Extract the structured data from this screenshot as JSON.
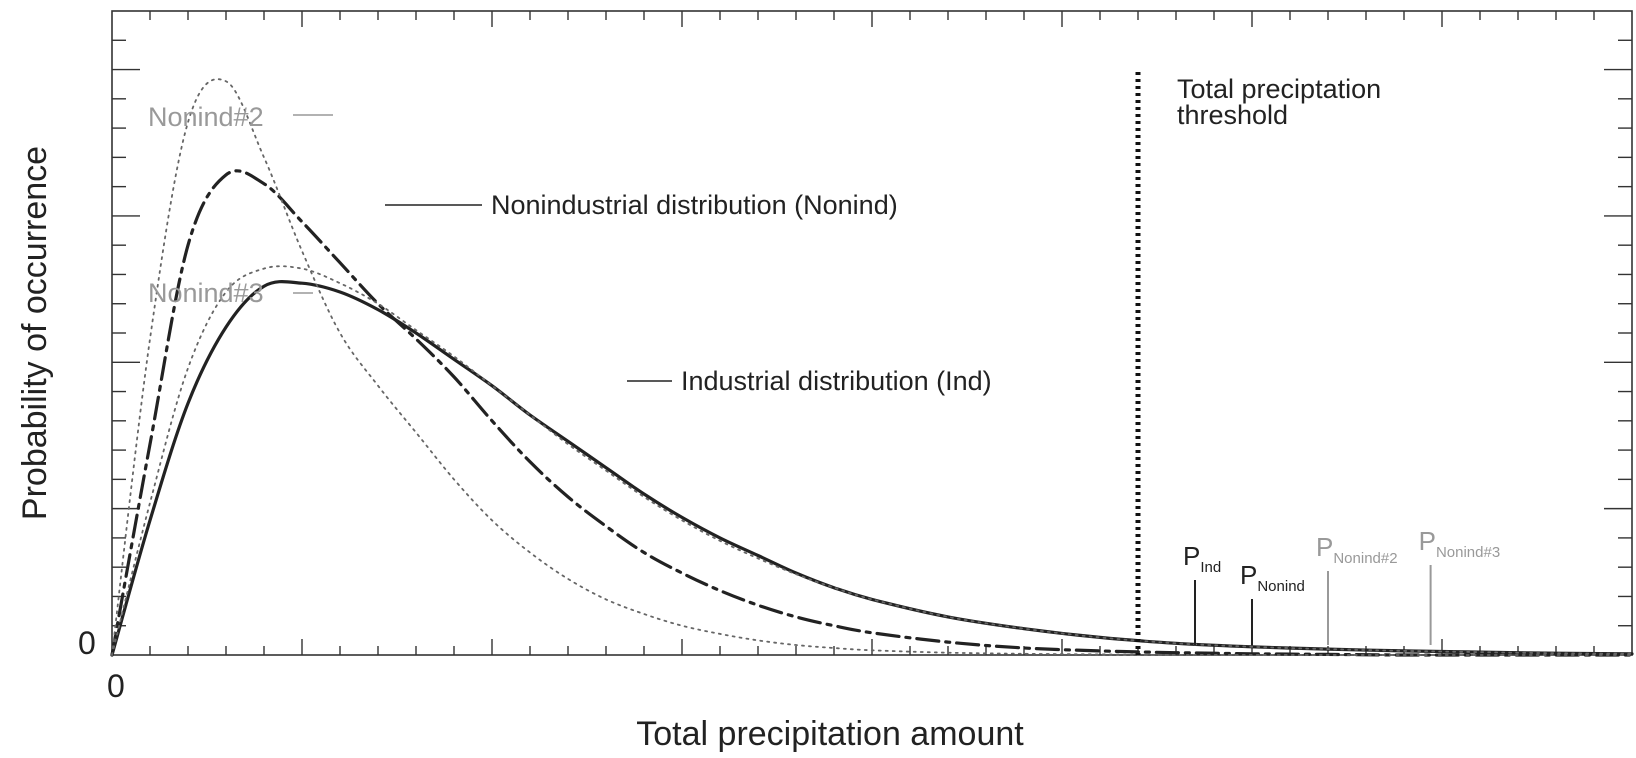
{
  "chart_data": {
    "type": "line",
    "title": "",
    "xlabel": "Total precipitation amount",
    "ylabel": "Probability of occurrence",
    "x_tick_label": "0",
    "y_tick_label": "0",
    "xlim": [
      0,
      40
    ],
    "ylim": [
      0,
      11
    ],
    "grid": false,
    "x": [
      0,
      1,
      2,
      3,
      4,
      5,
      6,
      7,
      8,
      9,
      10,
      11,
      12,
      13,
      14,
      15,
      16,
      17,
      18,
      19,
      20,
      22,
      24,
      26,
      28,
      30,
      32,
      34,
      36,
      38,
      40
    ],
    "series": [
      {
        "name": "Industrial distribution (Ind)",
        "style": "solid",
        "color": "#222222",
        "values": [
          0,
          2.3,
          4.3,
          5.6,
          6.3,
          6.35,
          6.2,
          5.9,
          5.5,
          5.05,
          4.6,
          4.1,
          3.65,
          3.2,
          2.75,
          2.35,
          2.0,
          1.7,
          1.4,
          1.15,
          0.95,
          0.65,
          0.45,
          0.3,
          0.2,
          0.14,
          0.1,
          0.07,
          0.05,
          0.03,
          0.02
        ]
      },
      {
        "name": "Nonindustrial distribution (Nonind)",
        "style": "dash-dot",
        "color": "#222222",
        "values": [
          0,
          3.6,
          7.0,
          8.2,
          8.05,
          7.4,
          6.7,
          6.0,
          5.4,
          4.75,
          4.0,
          3.3,
          2.7,
          2.2,
          1.75,
          1.4,
          1.1,
          0.85,
          0.65,
          0.5,
          0.38,
          0.22,
          0.12,
          0.07,
          0.04,
          0.02,
          0.01,
          0.0,
          0.0,
          0.0,
          0.0
        ]
      },
      {
        "name": "Nonind#2",
        "style": "dotted",
        "color": "#666666",
        "values": [
          0,
          5.4,
          9.1,
          9.8,
          8.5,
          6.9,
          5.5,
          4.6,
          3.8,
          3.0,
          2.3,
          1.75,
          1.3,
          0.95,
          0.7,
          0.5,
          0.36,
          0.25,
          0.17,
          0.12,
          0.08,
          0.04,
          0.02,
          0.01,
          0.0,
          0.0,
          0.0,
          0.0,
          0.0,
          0.0,
          0.0
        ]
      },
      {
        "name": "Nonind#3",
        "style": "dotted",
        "color": "#666666",
        "values": [
          0,
          2.6,
          4.9,
          6.2,
          6.6,
          6.6,
          6.35,
          6.0,
          5.55,
          5.1,
          4.6,
          4.1,
          3.6,
          3.15,
          2.7,
          2.3,
          1.95,
          1.65,
          1.38,
          1.15,
          0.95,
          0.65,
          0.45,
          0.3,
          0.2,
          0.14,
          0.1,
          0.07,
          0.05,
          0.03,
          0.02
        ]
      }
    ],
    "threshold": {
      "x": 27,
      "label_line1": "Total preciptation",
      "label_line2": "threshold"
    },
    "curve_labels": {
      "nonind2": "Nonind#2",
      "nonind3": "Nonind#3",
      "nonind": "Nonindustrial distribution (Nonind)",
      "ind": "Industrial distribution (Ind)"
    },
    "probability_markers": [
      {
        "base": "P",
        "sub": "Ind",
        "x": 28.5,
        "color": "#222222"
      },
      {
        "base": "P",
        "sub": "Nonind",
        "x": 30,
        "color": "#222222"
      },
      {
        "base": "P",
        "sub": "Nonind#2",
        "x": 32,
        "color": "#999999"
      },
      {
        "base": "P",
        "sub": "Nonind#3",
        "x": 34.7,
        "color": "#999999"
      }
    ]
  }
}
